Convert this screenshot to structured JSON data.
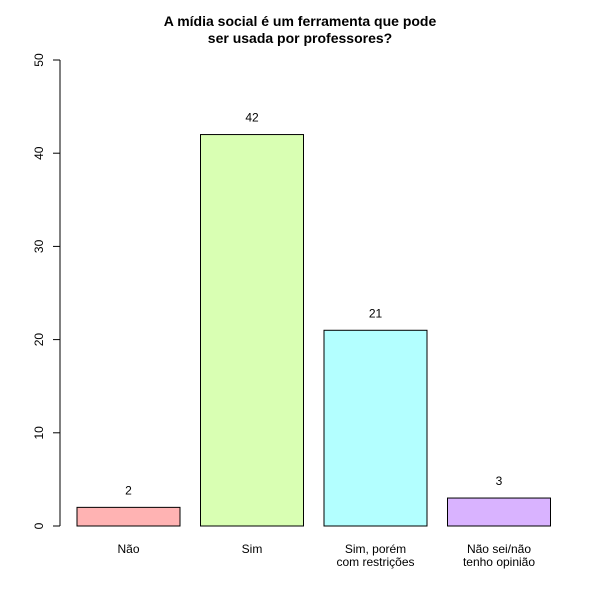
{
  "chart_data": {
    "type": "bar",
    "title": [
      "A mídia social é um ferramenta que pode",
      "ser usada por professores?"
    ],
    "categories": [
      [
        "Não"
      ],
      [
        "Sim"
      ],
      [
        "Sim, porém",
        "com restrições"
      ],
      [
        "Não sei/não",
        "tenho opinião"
      ]
    ],
    "values": [
      2,
      42,
      21,
      3
    ],
    "colors": [
      "#ffb3b3",
      "#d9ffb3",
      "#b3ffff",
      "#d9b3ff"
    ],
    "ylim": [
      0,
      50
    ],
    "yticks": [
      0,
      10,
      20,
      30,
      40,
      50
    ],
    "xlabel": "",
    "ylabel": "",
    "grid": false
  }
}
